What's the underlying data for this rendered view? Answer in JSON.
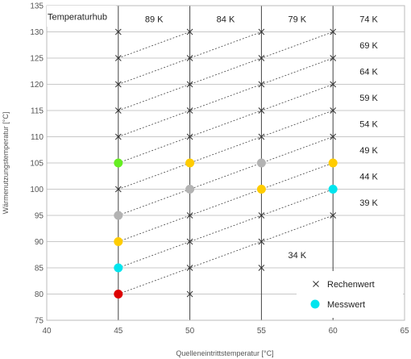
{
  "chart_data": {
    "type": "scatter",
    "xlabel": "Quelleneintrittstemperatur [°C]",
    "ylabel": "Wärmenutzungstemperatur [°C]",
    "xlim": [
      40,
      65
    ],
    "ylim": [
      75,
      135
    ],
    "xticks": [
      40,
      45,
      50,
      55,
      60,
      65
    ],
    "yticks": [
      75,
      80,
      85,
      90,
      95,
      100,
      105,
      110,
      115,
      120,
      125,
      130,
      135
    ],
    "grid": true,
    "legend_position": "bottom-right",
    "series": [
      {
        "name": "Rechenwert",
        "marker": "x",
        "color": "#333333",
        "points": [
          [
            45,
            80
          ],
          [
            45,
            85
          ],
          [
            45,
            90
          ],
          [
            45,
            95
          ],
          [
            45,
            100
          ],
          [
            45,
            105
          ],
          [
            45,
            110
          ],
          [
            45,
            115
          ],
          [
            45,
            120
          ],
          [
            45,
            125
          ],
          [
            45,
            130
          ],
          [
            50,
            80
          ],
          [
            50,
            85
          ],
          [
            50,
            90
          ],
          [
            50,
            95
          ],
          [
            50,
            100
          ],
          [
            50,
            105
          ],
          [
            50,
            110
          ],
          [
            50,
            115
          ],
          [
            50,
            120
          ],
          [
            50,
            125
          ],
          [
            50,
            130
          ],
          [
            55,
            85
          ],
          [
            55,
            90
          ],
          [
            55,
            95
          ],
          [
            55,
            100
          ],
          [
            55,
            105
          ],
          [
            55,
            110
          ],
          [
            55,
            115
          ],
          [
            55,
            120
          ],
          [
            55,
            125
          ],
          [
            55,
            130
          ],
          [
            60,
            95
          ],
          [
            60,
            100
          ],
          [
            60,
            105
          ],
          [
            60,
            110
          ],
          [
            60,
            115
          ],
          [
            60,
            120
          ],
          [
            60,
            125
          ],
          [
            60,
            130
          ]
        ]
      },
      {
        "name": "Messwert",
        "marker": "circle",
        "color": "#00e5ee",
        "points": [
          {
            "x": 45,
            "y": 80,
            "color": "#dd0000"
          },
          {
            "x": 45,
            "y": 85,
            "color": "#00e5ee"
          },
          {
            "x": 45,
            "y": 90,
            "color": "#ffcc00"
          },
          {
            "x": 45,
            "y": 95,
            "color": "#b3b3b3"
          },
          {
            "x": 45,
            "y": 105,
            "color": "#66ee22"
          },
          {
            "x": 50,
            "y": 100,
            "color": "#b3b3b3"
          },
          {
            "x": 50,
            "y": 105,
            "color": "#ffcc00"
          },
          {
            "x": 55,
            "y": 100,
            "color": "#ffcc00"
          },
          {
            "x": 55,
            "y": 105,
            "color": "#b3b3b3"
          },
          {
            "x": 60,
            "y": 100,
            "color": "#00e5ee"
          },
          {
            "x": 60,
            "y": 105,
            "color": "#ffcc00"
          }
        ]
      }
    ],
    "lift_lines": [
      {
        "start": [
          45,
          80
        ],
        "end": [
          60,
          95
        ]
      },
      {
        "start": [
          45,
          85
        ],
        "end": [
          60,
          100
        ]
      },
      {
        "start": [
          45,
          90
        ],
        "end": [
          60,
          105
        ]
      },
      {
        "start": [
          45,
          95
        ],
        "end": [
          60,
          110
        ]
      },
      {
        "start": [
          45,
          100
        ],
        "end": [
          60,
          115
        ]
      },
      {
        "start": [
          45,
          105
        ],
        "end": [
          60,
          120
        ]
      },
      {
        "start": [
          45,
          110
        ],
        "end": [
          60,
          125
        ]
      },
      {
        "start": [
          45,
          115
        ],
        "end": [
          60,
          130
        ]
      },
      {
        "start": [
          45,
          120
        ],
        "end": [
          55,
          130
        ]
      },
      {
        "start": [
          45,
          125
        ],
        "end": [
          50,
          130
        ]
      }
    ],
    "annotations": {
      "header": "Temperaturhub",
      "top_lifts": [
        {
          "text": "89 K",
          "x": 47.5,
          "y": 132.5
        },
        {
          "text": "84 K",
          "x": 52.5,
          "y": 132.5
        },
        {
          "text": "79 K",
          "x": 57.5,
          "y": 132.5
        },
        {
          "text": "74 K",
          "x": 62.5,
          "y": 132.5
        }
      ],
      "right_lifts": [
        {
          "text": "69 K",
          "x": 62.5,
          "y": 127.5
        },
        {
          "text": "64 K",
          "x": 62.5,
          "y": 122.5
        },
        {
          "text": "59 K",
          "x": 62.5,
          "y": 117.5
        },
        {
          "text": "54 K",
          "x": 62.5,
          "y": 112.5
        },
        {
          "text": "49 K",
          "x": 62.5,
          "y": 107.5
        },
        {
          "text": "44 K",
          "x": 62.5,
          "y": 102.5
        },
        {
          "text": "39 K",
          "x": 62.5,
          "y": 97.5
        },
        {
          "text": "34 K",
          "x": 57.5,
          "y": 87.5
        }
      ]
    }
  }
}
